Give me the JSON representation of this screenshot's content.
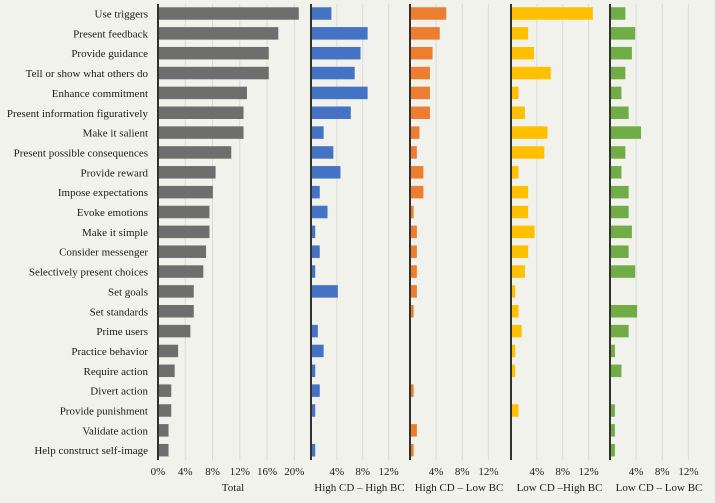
{
  "chart_data": {
    "type": "bar",
    "orientation": "horizontal",
    "categories": [
      "Use triggers",
      "Present feedback",
      "Provide guidance",
      "Tell or show what others do",
      "Enhance commitment",
      "Present information figuratively",
      "Make it salient",
      "Present possible consequences",
      "Provide reward",
      "Impose expectations",
      "Evoke emotions",
      "Make it simple",
      "Consider messenger",
      "Selectively present choices",
      "Set goals",
      "Set standards",
      "Prime users",
      "Practice behavior",
      "Require action",
      "Divert action",
      "Provide punishment",
      "Validate action",
      "Help construct self-image"
    ],
    "grid": true,
    "panels": [
      {
        "name": "Total",
        "color": "#6e6e6e",
        "ticks": [
          "0%",
          "4%",
          "8%",
          "12%",
          "16%",
          "20%"
        ],
        "xlim": [
          0,
          22
        ],
        "values": [
          20.5,
          17.5,
          16.1,
          16.1,
          12.9,
          12.4,
          12.4,
          10.6,
          8.3,
          7.9,
          7.4,
          7.4,
          6.9,
          6.5,
          5.1,
          5.1,
          4.6,
          2.8,
          2.3,
          1.8,
          1.8,
          1.4,
          1.4
        ]
      },
      {
        "name": "High CD – High BC",
        "color": "#4472c4",
        "ticks": [
          "4%",
          "8%",
          "12%"
        ],
        "xlim": [
          0,
          15
        ],
        "values": [
          3.0,
          8.6,
          7.5,
          6.6,
          8.6,
          6.0,
          1.8,
          3.3,
          4.4,
          1.2,
          2.4,
          0.5,
          1.2,
          0.5,
          4.0,
          0.0,
          0.9,
          1.8,
          0.5,
          1.2,
          0.5,
          0.0,
          0.5
        ]
      },
      {
        "name": "High CD – Low BC",
        "color": "#ed7d31",
        "ticks": [
          "4%",
          "8%",
          "12%"
        ],
        "xlim": [
          0,
          15
        ],
        "values": [
          5.4,
          4.4,
          3.3,
          2.9,
          2.9,
          2.9,
          1.3,
          0.9,
          1.9,
          1.9,
          0.4,
          0.9,
          0.9,
          0.9,
          0.9,
          0.4,
          0.0,
          0.0,
          0.0,
          0.4,
          0.0,
          0.9,
          0.4
        ]
      },
      {
        "name": "Low CD –High BC",
        "color": "#ffc000",
        "ticks": [
          "4%",
          "8%",
          "12%"
        ],
        "xlim": [
          0,
          15
        ],
        "values": [
          12.5,
          2.5,
          3.4,
          6.0,
          1.0,
          2.0,
          5.5,
          5.0,
          1.0,
          2.5,
          2.5,
          3.5,
          2.5,
          2.0,
          0.5,
          1.0,
          1.5,
          0.5,
          0.5,
          0.0,
          1.0,
          0.0,
          0.0
        ]
      },
      {
        "name": "Low CD – Low BC",
        "color": "#70ad47",
        "ticks": [
          "4%",
          "8%",
          "12%"
        ],
        "xlim": [
          0,
          15
        ],
        "values": [
          2.2,
          3.7,
          3.2,
          2.2,
          1.6,
          2.7,
          4.6,
          2.2,
          1.6,
          2.7,
          2.7,
          3.2,
          2.7,
          3.7,
          0.0,
          4.0,
          2.7,
          0.6,
          1.6,
          0.0,
          0.6,
          0.6,
          0.6
        ]
      }
    ]
  }
}
